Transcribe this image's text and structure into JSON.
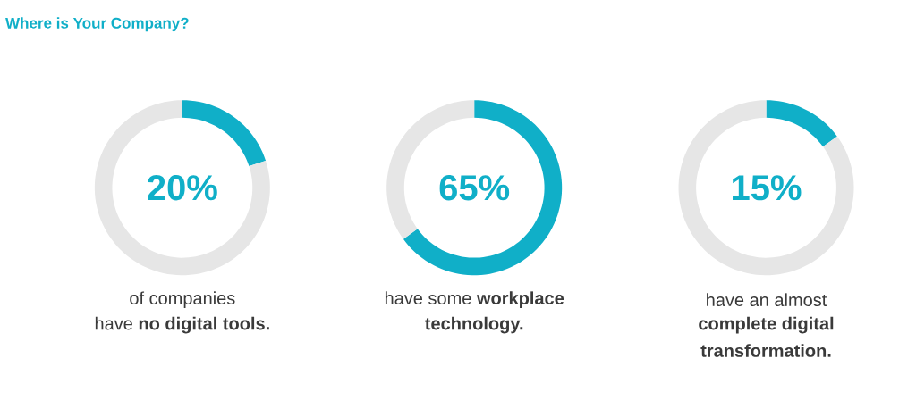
{
  "chart_data": [
    {
      "type": "donut",
      "title": "Where is Your Company?",
      "categories": [
        null,
        null
      ],
      "values": [
        20,
        80
      ],
      "colors": [
        "#10afc8",
        "#e6e6e6"
      ],
      "annotations": [
        "20%",
        "of companies",
        "have **no digital tools.**"
      ]
    },
    {
      "type": "donut",
      "categories": [
        null,
        null
      ],
      "values": [
        65,
        35
      ],
      "colors": [
        "#10afc8",
        "#e6e6e6"
      ],
      "annotations": [
        "65%",
        "have some **workplace**",
        "**technology.**"
      ]
    },
    {
      "type": "donut",
      "categories": [
        null,
        null
      ],
      "values": [
        15,
        85
      ],
      "colors": [
        "#10afc8",
        "#e6e6e6"
      ],
      "annotations": [
        "15%",
        "have an almost",
        "**complete digital**",
        "**transformation.**"
      ]
    }
  ]
}
